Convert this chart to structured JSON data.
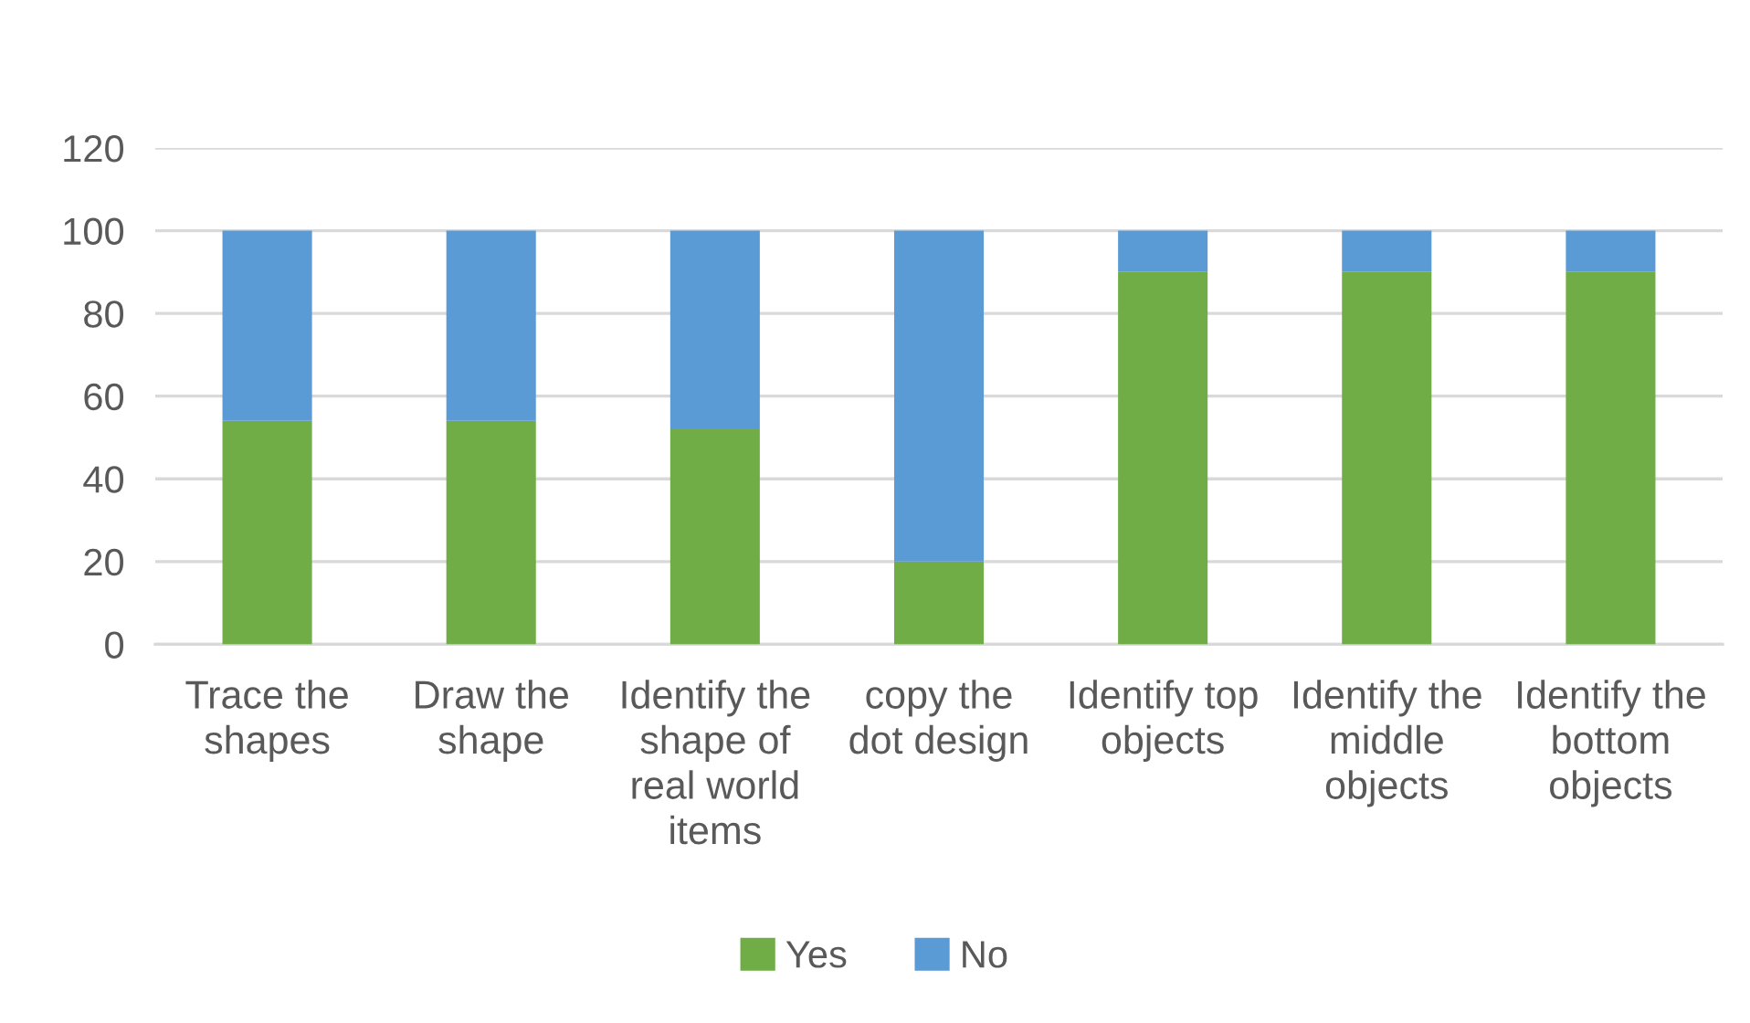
{
  "chart_data": {
    "type": "bar",
    "stacked": true,
    "categories": [
      "Trace the\nshapes",
      "Draw the\nshape",
      "Identify the\nshape of\nreal world\nitems",
      "copy the\ndot design",
      "Identify top\nobjects",
      "Identify the\nmiddle\nobjects",
      "Identify the\nbottom\nobjects"
    ],
    "series": [
      {
        "name": "Yes",
        "color": "#70ad47",
        "values": [
          54,
          54,
          52,
          20,
          90,
          90,
          90
        ]
      },
      {
        "name": "No",
        "color": "#5b9bd5",
        "values": [
          46,
          46,
          48,
          80,
          10,
          10,
          10
        ]
      }
    ],
    "ylim": [
      0,
      120
    ],
    "yticks": [
      0,
      20,
      40,
      60,
      80,
      100,
      120
    ],
    "grid": "y",
    "legend": "bottom"
  }
}
